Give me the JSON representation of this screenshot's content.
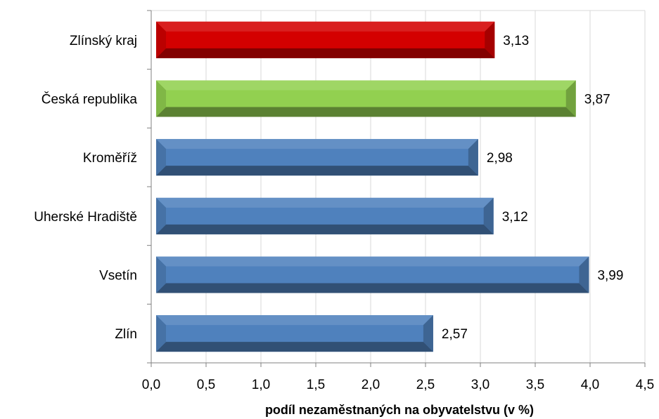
{
  "chart_data": {
    "type": "bar",
    "orientation": "horizontal",
    "categories": [
      "Zlínský kraj",
      "Česká republika",
      "Kroměříž",
      "Uherské Hradiště",
      "Vsetín",
      "Zlín"
    ],
    "values": [
      3.13,
      3.87,
      2.98,
      3.12,
      3.99,
      2.57
    ],
    "value_labels": [
      "3,13",
      "3,87",
      "2,98",
      "3,12",
      "3,99",
      "2,57"
    ],
    "bar_colors": [
      "#d40000",
      "#92d050",
      "#4f81bd",
      "#4f81bd",
      "#4f81bd",
      "#4f81bd"
    ],
    "xlabel": "podíl nezaměstnaných na obyvatelstvu (v %)",
    "ylabel": "",
    "title": "",
    "xlim": [
      0,
      4.5
    ],
    "x_ticks": [
      0,
      0.5,
      1.0,
      1.5,
      2.0,
      2.5,
      3.0,
      3.5,
      4.0,
      4.5
    ],
    "x_tick_labels": [
      "0,0",
      "0,5",
      "1,0",
      "1,5",
      "2,0",
      "2,5",
      "3,0",
      "3,5",
      "4,0",
      "4,5"
    ],
    "grid": "vertical",
    "legend": "none"
  }
}
